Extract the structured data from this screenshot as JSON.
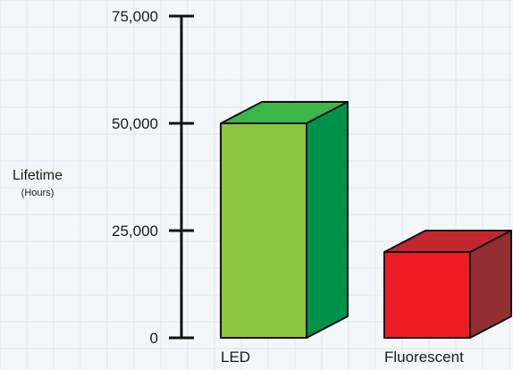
{
  "chart_data": {
    "type": "bar",
    "style": "3d-bars",
    "categories": [
      "LED",
      "Fluorescent"
    ],
    "values": [
      50000,
      20000
    ],
    "xlabel": "",
    "ylabel": "Lifetime",
    "ylabel_sub": "(Hours)",
    "ylim": [
      0,
      75000
    ],
    "yticks": [
      0,
      25000,
      50000,
      75000
    ],
    "ytick_labels": [
      "0",
      "25,000",
      "50,000",
      "75,000"
    ],
    "grid": true,
    "bar_colors": [
      {
        "front": "#8dc63f",
        "top": "#3db649",
        "side": "#00924a"
      },
      {
        "front": "#ed1c24",
        "top": "#c1272d",
        "side": "#932f32"
      }
    ],
    "axis_color": "#111111",
    "grid_color": "#dde6f2"
  }
}
